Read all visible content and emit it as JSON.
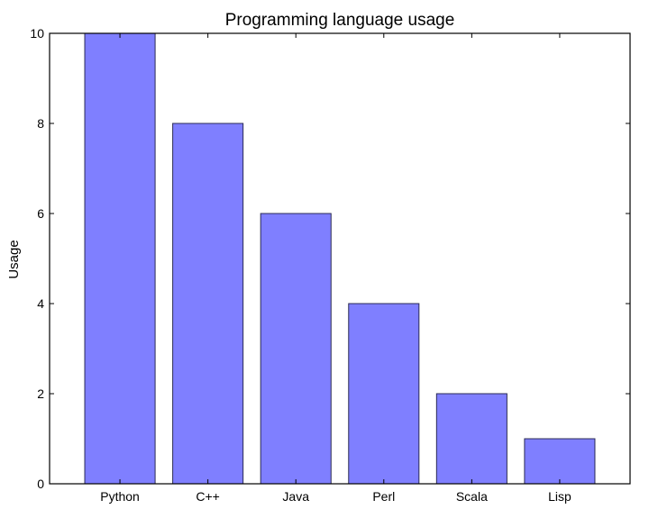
{
  "chart_data": {
    "type": "bar",
    "title": "Programming language usage",
    "xlabel": "",
    "ylabel": "Usage",
    "categories": [
      "Python",
      "C++",
      "Java",
      "Perl",
      "Scala",
      "Lisp"
    ],
    "values": [
      10,
      8,
      6,
      4,
      2,
      1
    ],
    "ylim": [
      0,
      10
    ],
    "yticks": [
      "0",
      "2",
      "4",
      "6",
      "8",
      "10"
    ],
    "bar_color": "#7f7fff",
    "grid": false,
    "legend": "none"
  }
}
